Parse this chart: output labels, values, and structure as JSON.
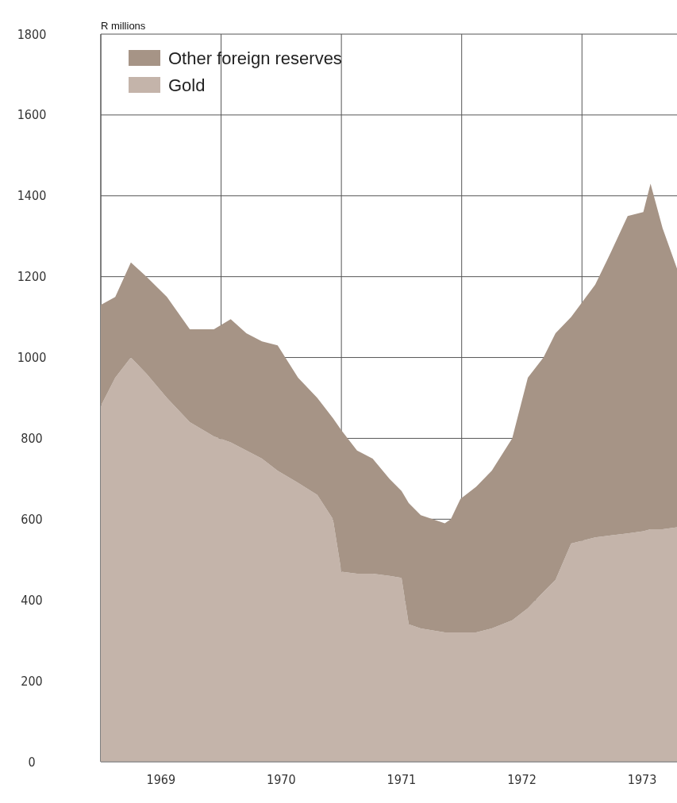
{
  "chart_data": {
    "type": "area",
    "stacked": true,
    "ylabel": "R millions",
    "x": [
      1969.0,
      1969.12,
      1969.25,
      1969.38,
      1969.55,
      1969.74,
      1969.94,
      1970.08,
      1970.21,
      1970.34,
      1970.47,
      1970.64,
      1970.8,
      1970.93,
      1971.0,
      1971.13,
      1971.26,
      1971.4,
      1971.5,
      1971.56,
      1971.66,
      1971.86,
      1971.91,
      1971.99,
      1972.12,
      1972.25,
      1972.42,
      1972.55,
      1972.68,
      1972.78,
      1972.91,
      1973.11,
      1973.24,
      1973.38,
      1973.51,
      1973.57,
      1973.67,
      1973.79
    ],
    "series": [
      {
        "name": "Gold",
        "color": "#c4b4aa",
        "values": [
          880,
          950,
          1000,
          960,
          900,
          840,
          805,
          790,
          770,
          750,
          720,
          690,
          660,
          600,
          470,
          465,
          465,
          460,
          455,
          340,
          330,
          320,
          320,
          320,
          320,
          330,
          350,
          380,
          420,
          450,
          540,
          555,
          560,
          565,
          570,
          575,
          575,
          580
        ]
      },
      {
        "name": "Other foreign reserves",
        "color": "#a69486",
        "values": [
          250,
          200,
          235,
          240,
          250,
          230,
          265,
          305,
          290,
          290,
          310,
          260,
          240,
          250,
          350,
          305,
          285,
          240,
          215,
          300,
          280,
          270,
          280,
          330,
          360,
          390,
          450,
          570,
          580,
          610,
          560,
          625,
          700,
          785,
          790,
          855,
          745,
          640
        ]
      }
    ],
    "xlim": [
      1969,
      1973.79
    ],
    "xticks": [
      {
        "value": 1969,
        "label": null
      },
      {
        "value": 1969.5,
        "label": "1969"
      },
      {
        "value": 1970,
        "label": null
      },
      {
        "value": 1970.5,
        "label": "1970"
      },
      {
        "value": 1971,
        "label": null
      },
      {
        "value": 1971.5,
        "label": "1971"
      },
      {
        "value": 1972,
        "label": null
      },
      {
        "value": 1972.5,
        "label": "1972"
      },
      {
        "value": 1973,
        "label": null
      },
      {
        "value": 1973.5,
        "label": "1973"
      }
    ],
    "ylim": [
      0,
      1800
    ],
    "yticks": [
      0,
      200,
      400,
      600,
      800,
      1000,
      1200,
      1400,
      1600,
      1800
    ],
    "grid": true,
    "legend": "top left"
  }
}
